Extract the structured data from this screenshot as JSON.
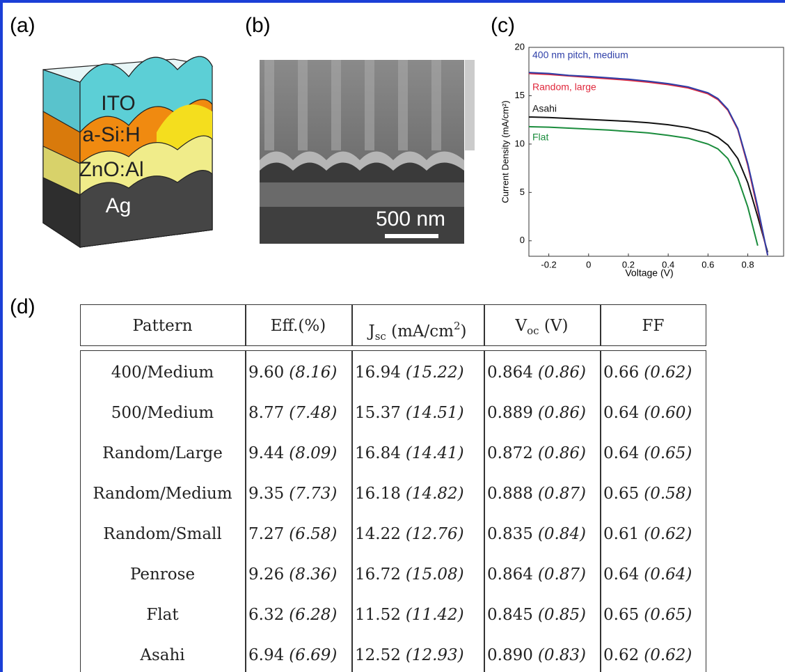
{
  "panels": {
    "a": "(a)",
    "b": "(b)",
    "c": "(c)",
    "d": "(d)"
  },
  "diagram": {
    "layers": [
      "ITO",
      "a-Si:H",
      "ZnO:Al",
      "Ag"
    ]
  },
  "micrograph": {
    "scale_bar": "500 nm"
  },
  "chart_data": {
    "type": "line",
    "x_label": "Voltage (V)",
    "y_label": "Current Density (mA/cm²)",
    "x": [
      -0.3,
      -0.2,
      -0.1,
      0,
      0.1,
      0.2,
      0.3,
      0.4,
      0.5,
      0.6,
      0.65,
      0.7,
      0.75,
      0.8,
      0.85,
      0.9
    ],
    "series": [
      {
        "name": "400 nm pitch, medium",
        "color": "#2e3fa8",
        "values": [
          17.4,
          17.3,
          17.1,
          17.0,
          16.85,
          16.7,
          16.5,
          16.25,
          15.9,
          15.3,
          14.7,
          13.6,
          11.6,
          8.0,
          3.5,
          -1.5
        ]
      },
      {
        "name": "Random, large",
        "color": "#e0283c",
        "values": [
          17.3,
          17.2,
          17.05,
          16.9,
          16.75,
          16.6,
          16.4,
          16.15,
          15.8,
          15.2,
          14.6,
          13.5,
          11.5,
          7.8,
          3.2,
          -1.5
        ]
      },
      {
        "name": "Asahi",
        "color": "#111111",
        "values": [
          12.8,
          12.75,
          12.65,
          12.55,
          12.45,
          12.35,
          12.2,
          12.0,
          11.7,
          11.2,
          10.7,
          9.9,
          8.5,
          6.0,
          2.5,
          -1.2
        ]
      },
      {
        "name": "Flat",
        "color": "#1a8c3c",
        "values": [
          11.8,
          11.75,
          11.65,
          11.55,
          11.45,
          11.3,
          11.15,
          10.9,
          10.6,
          10.0,
          9.5,
          8.5,
          6.5,
          3.5,
          -0.5,
          null
        ]
      }
    ],
    "xlim": [
      -0.3,
      0.98
    ],
    "ylim": [
      -1.6,
      20
    ],
    "xticks": [
      -0.2,
      0,
      0.2,
      0.4,
      0.6,
      0.8
    ],
    "yticks": [
      0,
      5,
      10,
      15,
      20
    ]
  },
  "table": {
    "headers": [
      {
        "text": "Pattern"
      },
      {
        "text": "Eff.(%)"
      },
      {
        "base": "J",
        "sub": "sc",
        "text": " (mA/cm",
        "sup": "2",
        "end": ")"
      },
      {
        "base": "V",
        "sub": "oc",
        "text": " (V)"
      },
      {
        "text": "FF"
      }
    ],
    "rows": [
      [
        "400/Medium",
        {
          "value": "9.60",
          "sim": "(8.16)"
        },
        {
          "value": "16.94",
          "sim": "(15.22)"
        },
        {
          "value": "0.864",
          "sim": "(0.86)"
        },
        {
          "value": "0.66",
          "sim": "(0.62)"
        }
      ],
      [
        "500/Medium",
        {
          "value": "8.77",
          "sim": "(7.48)"
        },
        {
          "value": "15.37",
          "sim": "(14.51)"
        },
        {
          "value": "0.889",
          "sim": "(0.86)"
        },
        {
          "value": "0.64",
          "sim": "(0.60)"
        }
      ],
      [
        "Random/Large",
        {
          "value": "9.44",
          "sim": "(8.09)"
        },
        {
          "value": "16.84",
          "sim": "(14.41)"
        },
        {
          "value": "0.872",
          "sim": "(0.86)"
        },
        {
          "value": "0.64",
          "sim": "(0.65)"
        }
      ],
      [
        "Random/Medium",
        {
          "value": "9.35",
          "sim": "(7.73)"
        },
        {
          "value": "16.18",
          "sim": "(14.82)"
        },
        {
          "value": "0.888",
          "sim": "(0.87)"
        },
        {
          "value": "0.65",
          "sim": "(0.58)"
        }
      ],
      [
        "Random/Small",
        {
          "value": "7.27",
          "sim": "(6.58)"
        },
        {
          "value": "14.22",
          "sim": "(12.76)"
        },
        {
          "value": "0.835",
          "sim": "(0.84)"
        },
        {
          "value": "0.61",
          "sim": "(0.62)"
        }
      ],
      [
        "Penrose",
        {
          "value": "9.26",
          "sim": "(8.36)"
        },
        {
          "value": "16.72",
          "sim": "(15.08)"
        },
        {
          "value": "0.864",
          "sim": "(0.87)"
        },
        {
          "value": "0.64",
          "sim": "(0.64)"
        }
      ],
      [
        "Flat",
        {
          "value": "6.32",
          "sim": "(6.28)"
        },
        {
          "value": "11.52",
          "sim": "(11.42)"
        },
        {
          "value": "0.845",
          "sim": "(0.85)"
        },
        {
          "value": "0.65",
          "sim": "(0.65)"
        }
      ],
      [
        "Asahi",
        {
          "value": "6.94",
          "sim": "(6.69)"
        },
        {
          "value": "12.52",
          "sim": "(12.93)"
        },
        {
          "value": "0.890",
          "sim": "(0.83)"
        },
        {
          "value": "0.62",
          "sim": "(0.62)"
        }
      ]
    ]
  }
}
